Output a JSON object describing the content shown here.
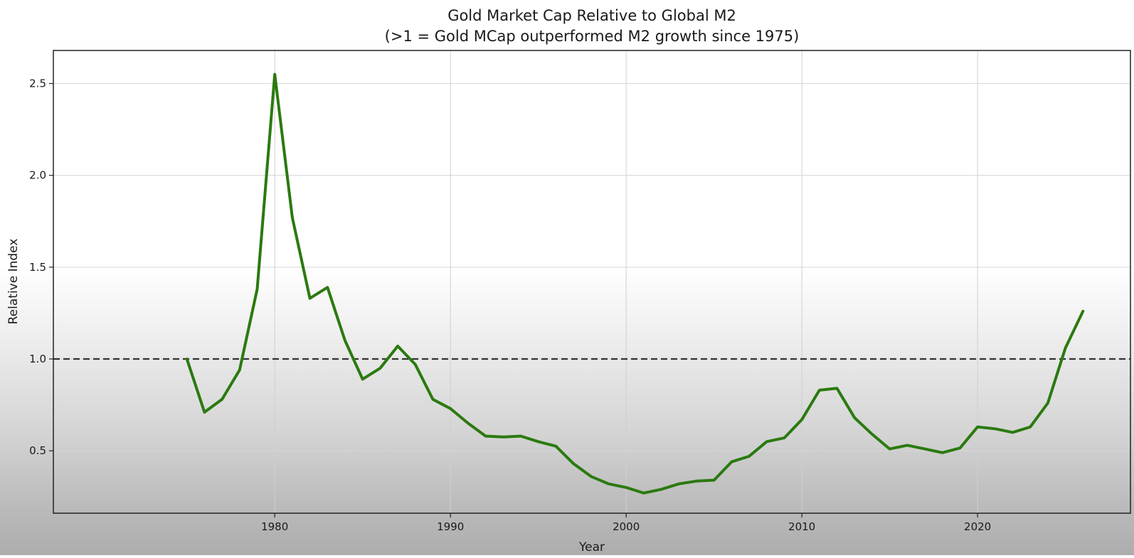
{
  "chart_data": {
    "type": "line",
    "title": "Gold Market Cap Relative to Global M2",
    "subtitle": "(>1 = Gold MCap outperformed M2 growth since 1975)",
    "xlabel": "Year",
    "ylabel": "Relative Index",
    "xlim": [
      1967.4,
      2028.7
    ],
    "ylim": [
      0.16,
      2.68
    ],
    "x_ticks": [
      "1980",
      "1990",
      "2000",
      "2010",
      "2020"
    ],
    "y_ticks": [
      "0.5",
      "1.0",
      "1.5",
      "2.0",
      "2.5"
    ],
    "grid": true,
    "legend": "none",
    "reference_line": {
      "y": 1.0,
      "style": "dashed",
      "color": "#333333"
    },
    "series": [
      {
        "color": "#2a7a0f",
        "x": [
          1975,
          1976,
          1977,
          1978,
          1979,
          1980,
          1981,
          1982,
          1983,
          1984,
          1985,
          1986,
          1987,
          1988,
          1989,
          1990,
          1991,
          1992,
          1993,
          1994,
          1995,
          1996,
          1997,
          1998,
          1999,
          2000,
          2001,
          2002,
          2003,
          2004,
          2005,
          2006,
          2007,
          2008,
          2009,
          2010,
          2011,
          2012,
          2013,
          2014,
          2015,
          2016,
          2017,
          2018,
          2019,
          2020,
          2021,
          2022,
          2023,
          2024,
          2025,
          2026
        ],
        "values": [
          1.0,
          0.71,
          0.78,
          0.94,
          1.38,
          2.55,
          1.77,
          1.33,
          1.39,
          1.1,
          0.89,
          0.95,
          1.07,
          0.97,
          0.78,
          0.73,
          0.65,
          0.58,
          0.575,
          0.58,
          0.55,
          0.525,
          0.43,
          0.36,
          0.32,
          0.3,
          0.27,
          0.29,
          0.32,
          0.335,
          0.34,
          0.44,
          0.47,
          0.55,
          0.57,
          0.67,
          0.83,
          0.84,
          0.68,
          0.59,
          0.51,
          0.53,
          0.51,
          0.49,
          0.515,
          0.63,
          0.62,
          0.6,
          0.63,
          0.76,
          1.06,
          1.26
        ]
      }
    ]
  }
}
